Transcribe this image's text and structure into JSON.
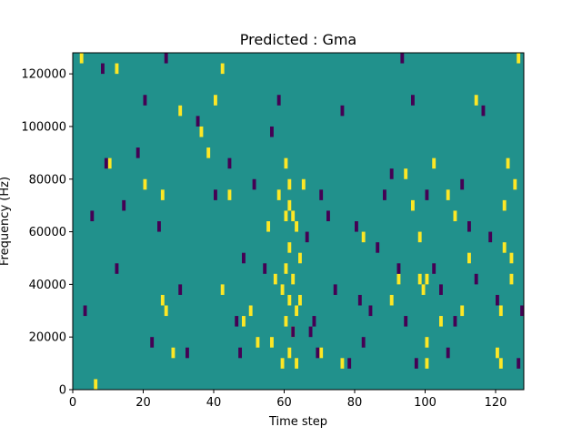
{
  "chart_data": {
    "type": "heatmap",
    "title": "Predicted : Gma",
    "xlabel": "Time step",
    "ylabel": "Frequency (Hz)",
    "xlim": [
      0,
      128
    ],
    "ylim": [
      0,
      128000
    ],
    "x_ticks": [
      0,
      20,
      40,
      60,
      80,
      100,
      120
    ],
    "x_tick_labels": [
      "0",
      "20",
      "40",
      "60",
      "80",
      "100",
      "120"
    ],
    "y_ticks": [
      0,
      20000,
      40000,
      60000,
      80000,
      100000,
      120000
    ],
    "y_tick_labels": [
      "0",
      "20000",
      "40000",
      "60000",
      "80000",
      "100000",
      "120000"
    ],
    "grid": false,
    "legend": "none",
    "colormap": "viridis",
    "colors": {
      "background": "#21918c",
      "high": "#fde725",
      "low": "#440154"
    },
    "bin_height_hz": 4000,
    "high_cells": [
      [
        2,
        124000
      ],
      [
        6,
        0
      ],
      [
        10,
        84000
      ],
      [
        12,
        120000
      ],
      [
        20,
        76000
      ],
      [
        25,
        72000
      ],
      [
        25,
        32000
      ],
      [
        26,
        28000
      ],
      [
        28,
        12000
      ],
      [
        30,
        104000
      ],
      [
        36,
        96000
      ],
      [
        38,
        88000
      ],
      [
        40,
        108000
      ],
      [
        42,
        120000
      ],
      [
        42,
        36000
      ],
      [
        44,
        72000
      ],
      [
        48,
        24000
      ],
      [
        50,
        28000
      ],
      [
        52,
        16000
      ],
      [
        55,
        60000
      ],
      [
        56,
        16000
      ],
      [
        57,
        40000
      ],
      [
        58,
        72000
      ],
      [
        59,
        36000
      ],
      [
        59,
        8000
      ],
      [
        60,
        84000
      ],
      [
        60,
        64000
      ],
      [
        60,
        44000
      ],
      [
        60,
        24000
      ],
      [
        61,
        76000
      ],
      [
        61,
        68000
      ],
      [
        61,
        52000
      ],
      [
        61,
        32000
      ],
      [
        61,
        12000
      ],
      [
        62,
        64000
      ],
      [
        62,
        40000
      ],
      [
        62,
        20000
      ],
      [
        63,
        60000
      ],
      [
        63,
        28000
      ],
      [
        63,
        8000
      ],
      [
        64,
        48000
      ],
      [
        64,
        32000
      ],
      [
        65,
        76000
      ],
      [
        70,
        12000
      ],
      [
        76,
        8000
      ],
      [
        82,
        56000
      ],
      [
        90,
        32000
      ],
      [
        92,
        40000
      ],
      [
        94,
        80000
      ],
      [
        96,
        68000
      ],
      [
        98,
        56000
      ],
      [
        98,
        40000
      ],
      [
        99,
        36000
      ],
      [
        100,
        40000
      ],
      [
        100,
        16000
      ],
      [
        100,
        8000
      ],
      [
        102,
        84000
      ],
      [
        104,
        24000
      ],
      [
        106,
        72000
      ],
      [
        108,
        64000
      ],
      [
        110,
        28000
      ],
      [
        112,
        48000
      ],
      [
        114,
        108000
      ],
      [
        120,
        12000
      ],
      [
        121,
        8000
      ],
      [
        121,
        28000
      ],
      [
        122,
        68000
      ],
      [
        122,
        52000
      ],
      [
        123,
        84000
      ],
      [
        124,
        48000
      ],
      [
        124,
        40000
      ],
      [
        125,
        76000
      ],
      [
        126,
        124000
      ]
    ],
    "low_cells": [
      [
        3,
        28000
      ],
      [
        5,
        64000
      ],
      [
        8,
        120000
      ],
      [
        9,
        84000
      ],
      [
        12,
        44000
      ],
      [
        14,
        68000
      ],
      [
        18,
        88000
      ],
      [
        20,
        108000
      ],
      [
        22,
        16000
      ],
      [
        24,
        60000
      ],
      [
        26,
        124000
      ],
      [
        30,
        36000
      ],
      [
        32,
        12000
      ],
      [
        35,
        100000
      ],
      [
        40,
        72000
      ],
      [
        44,
        84000
      ],
      [
        46,
        24000
      ],
      [
        47,
        12000
      ],
      [
        48,
        48000
      ],
      [
        51,
        76000
      ],
      [
        54,
        44000
      ],
      [
        56,
        96000
      ],
      [
        58,
        108000
      ],
      [
        62,
        20000
      ],
      [
        66,
        56000
      ],
      [
        67,
        20000
      ],
      [
        68,
        24000
      ],
      [
        69,
        12000
      ],
      [
        70,
        72000
      ],
      [
        72,
        64000
      ],
      [
        74,
        36000
      ],
      [
        76,
        104000
      ],
      [
        78,
        8000
      ],
      [
        80,
        60000
      ],
      [
        81,
        32000
      ],
      [
        82,
        16000
      ],
      [
        84,
        28000
      ],
      [
        86,
        52000
      ],
      [
        88,
        72000
      ],
      [
        90,
        80000
      ],
      [
        92,
        44000
      ],
      [
        93,
        124000
      ],
      [
        94,
        24000
      ],
      [
        96,
        108000
      ],
      [
        97,
        8000
      ],
      [
        100,
        72000
      ],
      [
        102,
        44000
      ],
      [
        104,
        36000
      ],
      [
        106,
        12000
      ],
      [
        108,
        24000
      ],
      [
        110,
        76000
      ],
      [
        112,
        60000
      ],
      [
        114,
        40000
      ],
      [
        116,
        104000
      ],
      [
        118,
        56000
      ],
      [
        120,
        32000
      ],
      [
        126,
        8000
      ],
      [
        127,
        28000
      ]
    ]
  }
}
